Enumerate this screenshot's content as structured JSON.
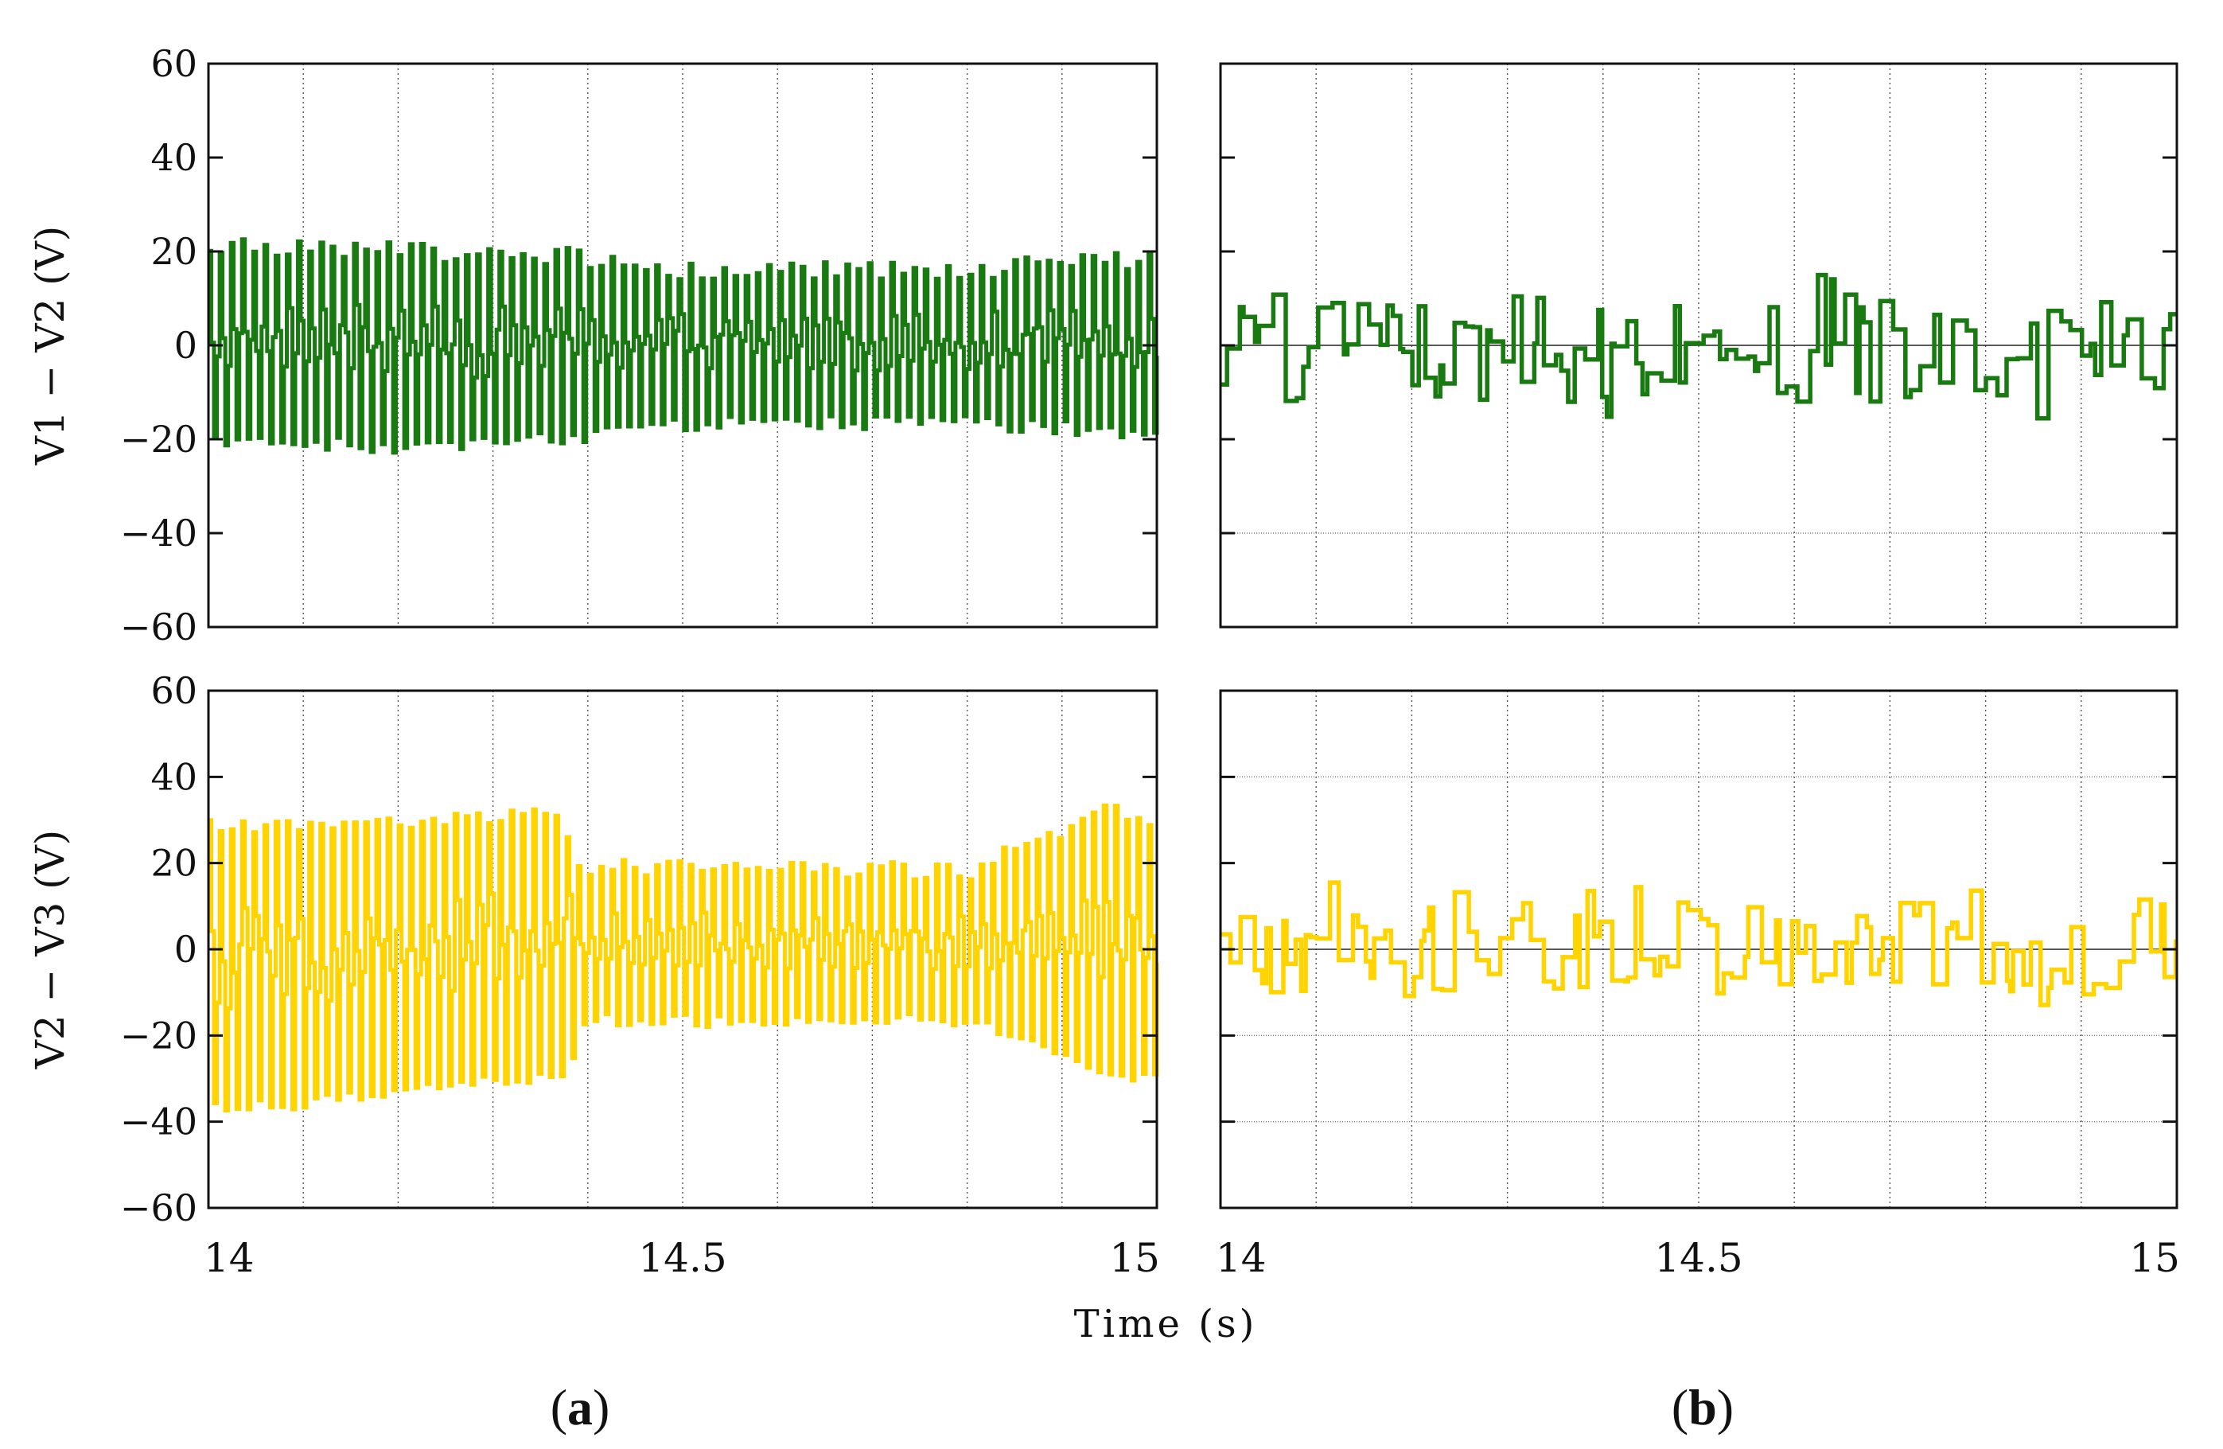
{
  "figure": {
    "x_axis_label": "Time (s)",
    "panel_labels": [
      "a",
      "b"
    ],
    "colors": {
      "green_series": "#1a7a12",
      "yellow_series": "#ffd400",
      "axes": "#111111",
      "grid": "#555555"
    }
  },
  "chart_data": [
    {
      "id": "a-top",
      "type": "line",
      "panel": "a",
      "row": "top",
      "ylabel": "V1 − V2 (V)",
      "xlim": [
        14,
        15
      ],
      "ylim": [
        -60,
        60
      ],
      "yticks": [
        "60",
        "40",
        "20",
        "0",
        "−20",
        "−40",
        "−60"
      ],
      "xticks": [],
      "grid": "vertical dotted every 0.1 s",
      "series": [
        {
          "color": "#1a7a12",
          "pattern": "switching",
          "envelope": {
            "x": [
              14.0,
              14.2,
              14.38,
              14.5,
              14.8,
              14.97,
              15.0
            ],
            "top": [
              23,
              22,
              21,
              18,
              18,
              20,
              20
            ],
            "bottom": [
              -22,
              -23,
              -21,
              -18,
              -18,
              -20,
              -20
            ]
          }
        }
      ]
    },
    {
      "id": "a-bottom",
      "type": "line",
      "panel": "a",
      "row": "bottom",
      "ylabel": "V2 − V3 (V)",
      "xlim": [
        14,
        15
      ],
      "ylim": [
        -60,
        60
      ],
      "yticks": [
        "60",
        "40",
        "20",
        "0",
        "−20",
        "−40",
        "−60"
      ],
      "xticks": [
        "14",
        "14.5",
        "15"
      ],
      "grid": "vertical dotted every 0.1 s",
      "series": [
        {
          "color": "#ffd400",
          "pattern": "switching",
          "envelope": {
            "x": [
              14.0,
              14.1,
              14.37,
              14.39,
              14.5,
              14.8,
              14.95,
              15.0
            ],
            "top": [
              30,
              30,
              34,
              21,
              21,
              20,
              35,
              30
            ],
            "bottom": [
              -38,
              -37,
              -30,
              -18,
              -18,
              -18,
              -31,
              -30
            ]
          }
        }
      ]
    },
    {
      "id": "b-top",
      "type": "line",
      "panel": "b",
      "row": "top",
      "xlim": [
        14,
        15
      ],
      "ylim": [
        -60,
        60
      ],
      "yticks": [],
      "xticks": [],
      "hlines": [
        0,
        -40
      ],
      "grid": "vertical dotted every 0.1 s",
      "series": [
        {
          "color": "#1a7a12",
          "pattern": "random-steps",
          "range": [
            -17,
            16
          ]
        }
      ]
    },
    {
      "id": "b-bottom",
      "type": "line",
      "panel": "b",
      "row": "bottom",
      "xlim": [
        14,
        15
      ],
      "ylim": [
        -60,
        60
      ],
      "yticks": [],
      "xticks": [
        "14",
        "14.5",
        "15"
      ],
      "hlines": [
        40,
        0,
        -20,
        -40
      ],
      "grid": "vertical dotted every 0.1 s",
      "series": [
        {
          "color": "#ffd400",
          "pattern": "random-steps",
          "range": [
            -15,
            16
          ]
        }
      ]
    }
  ]
}
